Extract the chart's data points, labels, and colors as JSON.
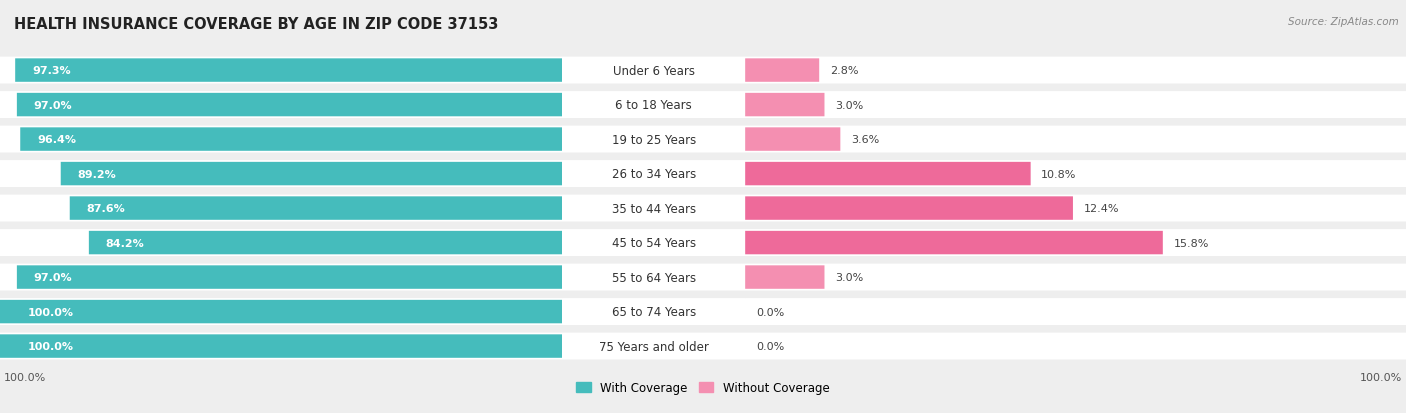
{
  "title": "HEALTH INSURANCE COVERAGE BY AGE IN ZIP CODE 37153",
  "source": "Source: ZipAtlas.com",
  "categories": [
    "Under 6 Years",
    "6 to 18 Years",
    "19 to 25 Years",
    "26 to 34 Years",
    "35 to 44 Years",
    "45 to 54 Years",
    "55 to 64 Years",
    "65 to 74 Years",
    "75 Years and older"
  ],
  "with_coverage": [
    97.3,
    97.0,
    96.4,
    89.2,
    87.6,
    84.2,
    97.0,
    100.0,
    100.0
  ],
  "without_coverage": [
    2.8,
    3.0,
    3.6,
    10.8,
    12.4,
    15.8,
    3.0,
    0.0,
    0.0
  ],
  "with_coverage_color": "#45BCBC",
  "without_coverage_color": "#F48FB1",
  "without_coverage_color_dark": "#EE6A9A",
  "background_color": "#eeeeee",
  "bar_bg_color": "#ffffff",
  "row_bg_color": "#e8e8e8",
  "title_fontsize": 10.5,
  "label_fontsize": 8.0,
  "bar_height": 0.68,
  "left_xlim": [
    0,
    100
  ],
  "right_xlim": [
    0,
    25
  ],
  "pct_label_fontsize": 8.0,
  "cat_label_fontsize": 8.5
}
